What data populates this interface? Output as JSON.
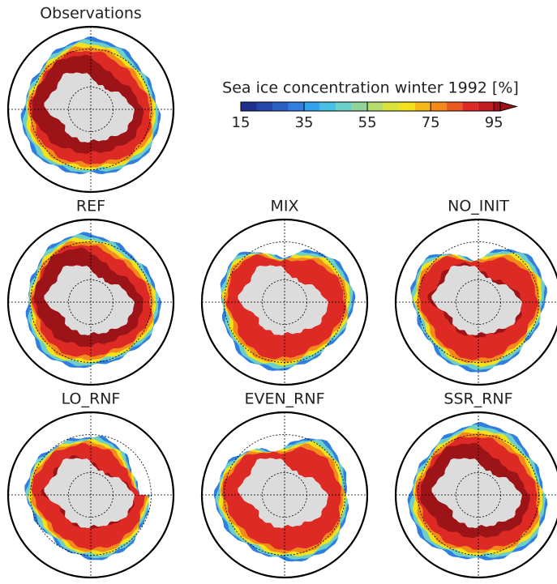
{
  "chart_data": {
    "type": "colorbar",
    "title": "Sea ice concentration winter 1992 [%]",
    "xlim": [
      15,
      97
    ],
    "xticks": [
      15,
      35,
      55,
      75,
      95
    ],
    "colors": [
      "#1f2f8c",
      "#2545a8",
      "#2a5fc4",
      "#2f7ee0",
      "#33a3ee",
      "#45c1e8",
      "#6ccfc9",
      "#8fd49b",
      "#b3dc6a",
      "#d8e43a",
      "#f2e21c",
      "#f7b81a",
      "#f48a1c",
      "#ec5a20",
      "#de2a25",
      "#c11d22",
      "#9c1418"
    ]
  },
  "panels": [
    {
      "title": "Observations"
    },
    {
      "title": "REF"
    },
    {
      "title": "MIX"
    },
    {
      "title": "NO_INIT"
    },
    {
      "title": "LO_RNF"
    },
    {
      "title": "EVEN_RNF"
    },
    {
      "title": "SSR_RNF"
    }
  ]
}
